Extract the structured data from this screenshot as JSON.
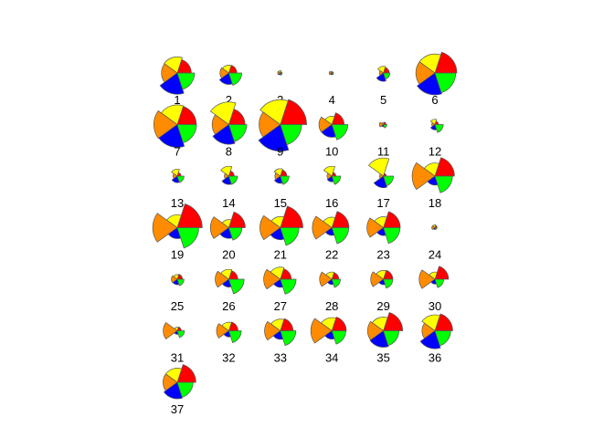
{
  "chart_data": {
    "type": "star",
    "title": "",
    "xlabel": "",
    "ylabel": "",
    "segment_colors": [
      "#FF0000",
      "#FFFF00",
      "#FF8C00",
      "#0000FF",
      "#00FF00"
    ],
    "items": [
      {
        "label": "1",
        "values": [
          0.64,
          0.74,
          0.72,
          0.97,
          0.79
        ]
      },
      {
        "label": "2",
        "values": [
          0.37,
          0.36,
          0.4,
          0.52,
          0.59
        ]
      },
      {
        "label": "3",
        "values": [
          0.07,
          0.11,
          0.12,
          0.09,
          0.09
        ]
      },
      {
        "label": "4",
        "values": [
          0.06,
          0.08,
          0.12,
          0.08,
          0.08
        ]
      },
      {
        "label": "5",
        "values": [
          0.27,
          0.31,
          0.18,
          0.38,
          0.3
        ]
      },
      {
        "label": "6",
        "values": [
          1.0,
          0.87,
          0.87,
          1.0,
          0.95
        ]
      },
      {
        "label": "7",
        "values": [
          0.87,
          0.9,
          1.07,
          1.04,
          0.88
        ]
      },
      {
        "label": "8",
        "values": [
          0.74,
          1.03,
          0.76,
          0.9,
          0.82
        ]
      },
      {
        "label": "9",
        "values": [
          1.2,
          1.14,
          0.97,
          1.22,
          0.97
        ]
      },
      {
        "label": "10",
        "values": [
          0.56,
          0.38,
          0.59,
          0.58,
          0.73
        ]
      },
      {
        "label": "11",
        "values": [
          0.12,
          0.09,
          0.18,
          0.1,
          0.16
        ]
      },
      {
        "label": "12",
        "values": [
          0.16,
          0.24,
          0.14,
          0.24,
          0.38
        ]
      },
      {
        "label": "13",
        "values": [
          0.17,
          0.32,
          0.19,
          0.3,
          0.31
        ]
      },
      {
        "label": "14",
        "values": [
          0.25,
          0.45,
          0.2,
          0.38,
          0.4
        ]
      },
      {
        "label": "15",
        "values": [
          0.3,
          0.34,
          0.25,
          0.33,
          0.4
        ]
      },
      {
        "label": "16",
        "values": [
          0.18,
          0.45,
          0.22,
          0.26,
          0.4
        ]
      },
      {
        "label": "17",
        "values": [
          0.13,
          0.83,
          0.17,
          0.53,
          0.46
        ]
      },
      {
        "label": "18",
        "values": [
          0.89,
          0.6,
          1.04,
          0.41,
          0.8
        ]
      },
      {
        "label": "19",
        "values": [
          1.14,
          0.59,
          1.12,
          0.5,
          0.98
        ]
      },
      {
        "label": "20",
        "values": [
          0.75,
          0.37,
          0.84,
          0.49,
          0.6
        ]
      },
      {
        "label": "21",
        "values": [
          1.03,
          0.51,
          0.93,
          0.55,
          0.85
        ]
      },
      {
        "label": "22",
        "values": [
          0.78,
          0.48,
          0.89,
          0.35,
          0.77
        ]
      },
      {
        "label": "23",
        "values": [
          0.77,
          0.5,
          0.75,
          0.36,
          0.76
        ]
      },
      {
        "label": "24",
        "values": [
          0.1,
          0.13,
          0.14,
          0.08,
          0.09
        ]
      },
      {
        "label": "25",
        "values": [
          0.24,
          0.21,
          0.27,
          0.25,
          0.31
        ]
      },
      {
        "label": "26",
        "values": [
          0.41,
          0.45,
          0.62,
          0.36,
          0.7
        ]
      },
      {
        "label": "27",
        "values": [
          0.5,
          0.55,
          0.76,
          0.37,
          0.72
        ]
      },
      {
        "label": "28",
        "values": [
          0.32,
          0.33,
          0.56,
          0.24,
          0.39
        ]
      },
      {
        "label": "29",
        "values": [
          0.43,
          0.4,
          0.58,
          0.25,
          0.43
        ]
      },
      {
        "label": "30",
        "values": [
          0.62,
          0.33,
          0.72,
          0.22,
          0.4
        ]
      },
      {
        "label": "31",
        "values": [
          0.18,
          0.16,
          0.64,
          0.16,
          0.33
        ]
      },
      {
        "label": "32",
        "values": [
          0.42,
          0.39,
          0.56,
          0.28,
          0.57
        ]
      },
      {
        "label": "33",
        "values": [
          0.58,
          0.53,
          0.72,
          0.39,
          0.71
        ]
      },
      {
        "label": "34",
        "values": [
          0.66,
          0.6,
          0.96,
          0.38,
          0.64
        ]
      },
      {
        "label": "35",
        "values": [
          0.88,
          0.63,
          0.72,
          0.75,
          0.71
        ]
      },
      {
        "label": "36",
        "values": [
          0.81,
          0.73,
          0.59,
          0.82,
          0.72
        ]
      },
      {
        "label": "37",
        "values": [
          0.85,
          0.65,
          0.65,
          0.75,
          0.72
        ]
      }
    ]
  }
}
